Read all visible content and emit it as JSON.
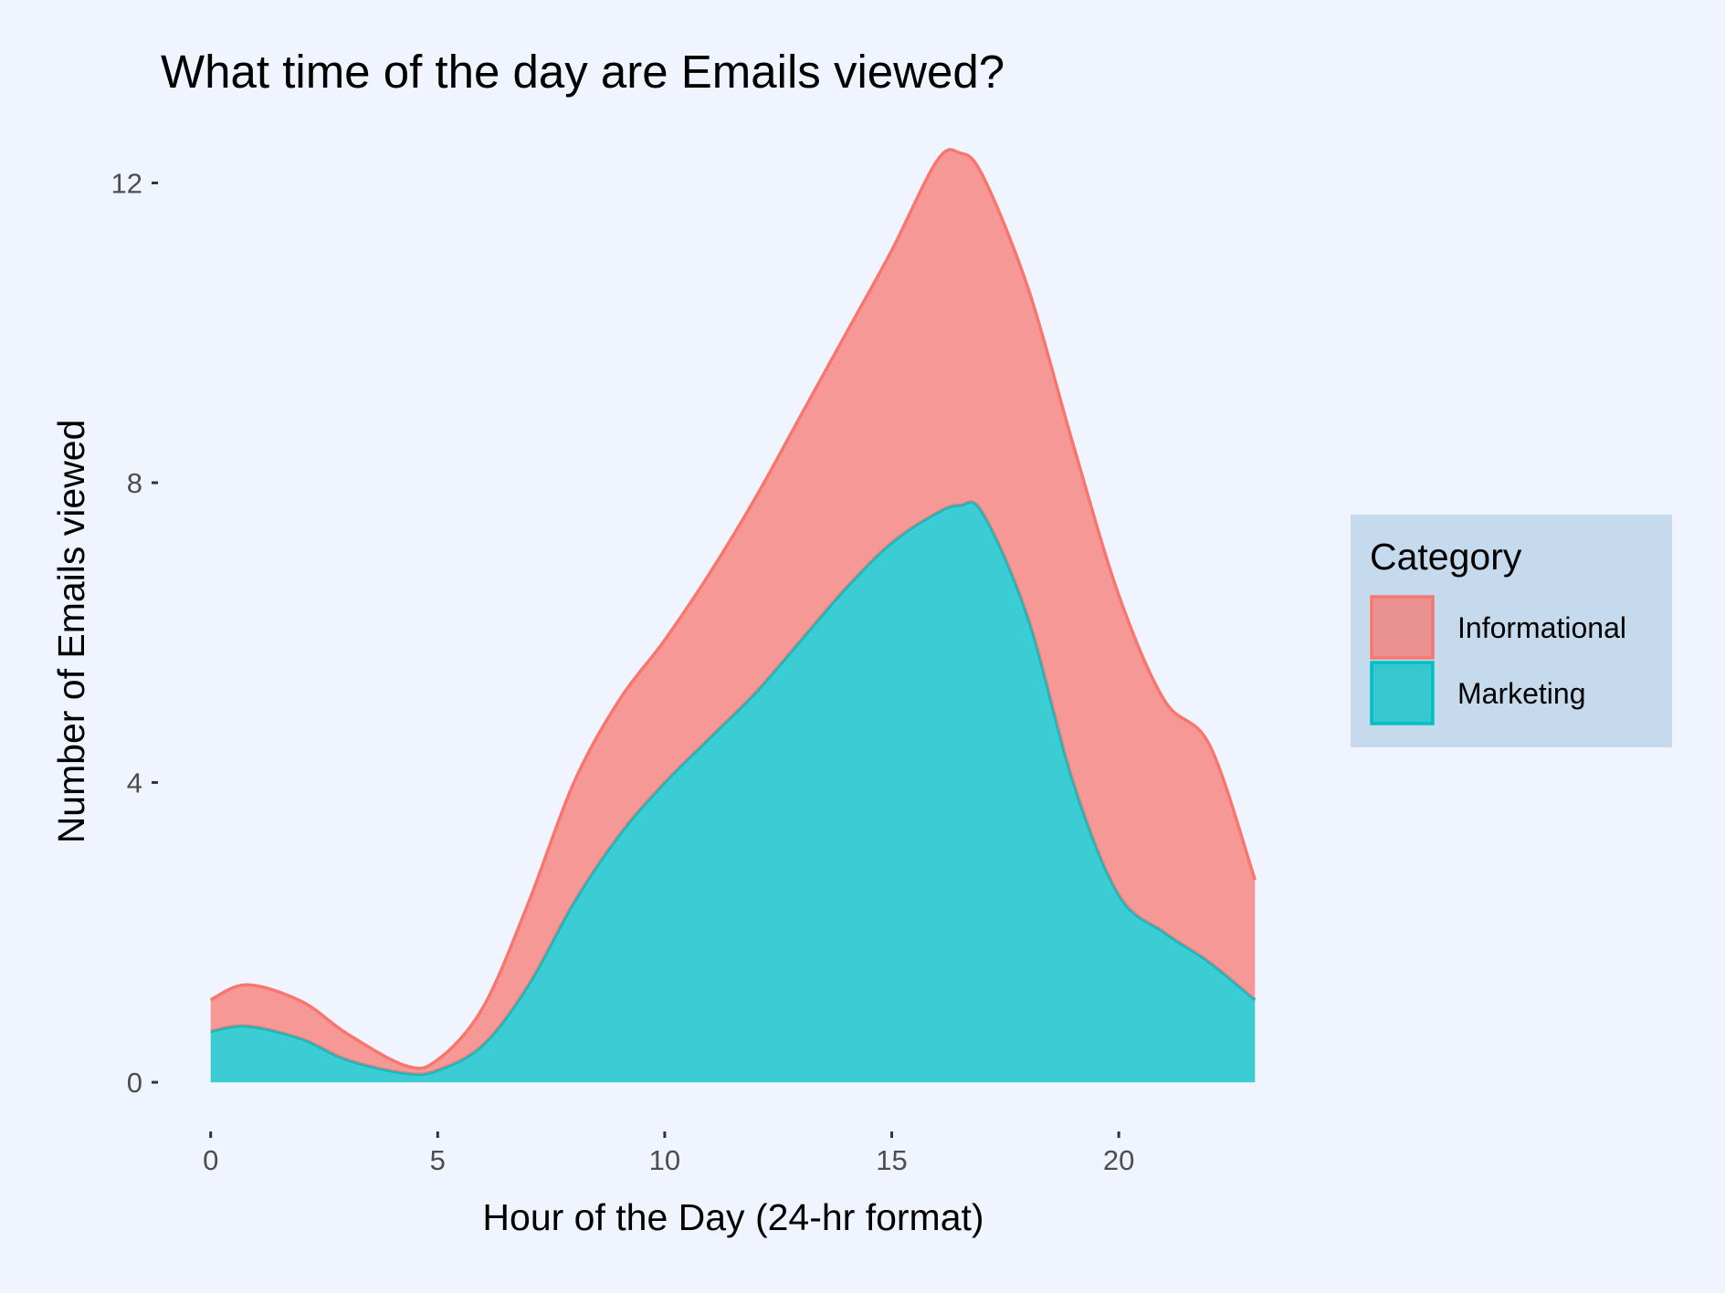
{
  "chart_data": {
    "type": "area",
    "stacked": true,
    "title": "What time of the day are Emails viewed?",
    "xlabel": "Hour of the Day (24-hr format)",
    "ylabel": "Number of Emails viewed",
    "xlim": [
      -1.1,
      24.1
    ],
    "ylim": [
      -0.62,
      12.42
    ],
    "x_ticks": [
      0,
      5,
      10,
      15,
      20
    ],
    "y_ticks": [
      0,
      4,
      8,
      12
    ],
    "grid": false,
    "legend": {
      "title": "Category",
      "position": "right"
    },
    "x": [
      0,
      0.8,
      2,
      3,
      4.3,
      5,
      6,
      7,
      8,
      9,
      10,
      11,
      12,
      13,
      14,
      15,
      16,
      16.5,
      17,
      18,
      19,
      20,
      21,
      22,
      23
    ],
    "series": [
      {
        "name": "Marketing",
        "color": "#00bfc4",
        "values": [
          0.68,
          0.75,
          0.58,
          0.3,
          0.12,
          0.16,
          0.5,
          1.3,
          2.4,
          3.3,
          4.0,
          4.6,
          5.2,
          5.9,
          6.6,
          7.2,
          7.6,
          7.7,
          7.6,
          6.2,
          4.0,
          2.5,
          2.0,
          1.6,
          1.1
        ]
      },
      {
        "name": "Informational",
        "color": "#f8766d",
        "values": [
          0.42,
          0.55,
          0.5,
          0.35,
          0.1,
          0.14,
          0.5,
          1.1,
          1.6,
          1.8,
          1.9,
          2.2,
          2.6,
          3.0,
          3.4,
          3.9,
          4.7,
          4.7,
          4.5,
          4.4,
          4.5,
          4.0,
          3.1,
          2.9,
          1.6
        ]
      }
    ]
  },
  "colors": {
    "background": "#f0f4fe",
    "legend_background": "#c6daee"
  }
}
